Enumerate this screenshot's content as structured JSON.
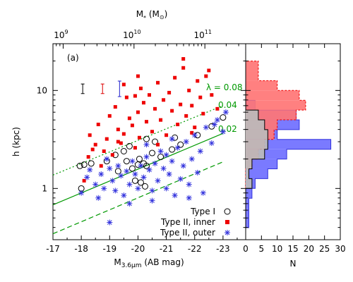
{
  "chart_data": [
    {
      "panel": "scatter",
      "type": "scatter",
      "panel_label": "(a)",
      "xlabel_bottom": "M",
      "xlabel_bottom_sub": "3.6µm",
      "xlabel_bottom_unit": " (AB mag)",
      "xlabel_top": "M",
      "xlabel_top_sub": "*",
      "xlabel_top_unit": " (M",
      "xlabel_top_sun": "⊙",
      "xlabel_top_close": ")",
      "ylabel": "h (kpc)",
      "x_reversed": true,
      "xlim": [
        -17,
        -23.8
      ],
      "ylim": [
        0.3,
        30
      ],
      "y_scale": "log",
      "x_ticks": [
        -17,
        -18,
        -19,
        -20,
        -21,
        -22,
        -23
      ],
      "x_tick_labels": [
        "-17",
        "-18",
        "-19",
        "-20",
        "-21",
        "-22",
        "-23"
      ],
      "y_ticks": [
        1,
        10
      ],
      "y_tick_labels": [
        "1",
        "10"
      ],
      "top_ticks": [
        {
          "mstar_exp": 9,
          "mag": -17.36
        },
        {
          "mstar_exp": 10,
          "mag": -19.86
        },
        {
          "mstar_exp": 11,
          "mag": -22.36
        }
      ],
      "top_tick_base": "10",
      "top_tick_labels": [
        "9",
        "10",
        "11"
      ],
      "lambda_label": "λ = 0.08",
      "lines": [
        {
          "lambda": "0.08",
          "label": "0.08",
          "style": "dotted",
          "x": [
            -17,
            -23
          ],
          "y": [
            1.37,
            7.0
          ],
          "color": "#009900"
        },
        {
          "lambda": "0.04",
          "label": "0.04",
          "style": "solid",
          "x": [
            -17,
            -23
          ],
          "y": [
            0.68,
            3.65
          ],
          "color": "#009900"
        },
        {
          "lambda": "0.02",
          "label": "0.02",
          "style": "dashed",
          "x": [
            -17,
            -23
          ],
          "y": [
            0.345,
            1.87
          ],
          "color": "#009900"
        }
      ],
      "error_bars": [
        {
          "series": "Type I",
          "x": -18.05,
          "y": 10.4,
          "dy_factor": 1.12,
          "color": "#000000"
        },
        {
          "series": "Type II, inner",
          "x": -18.75,
          "y": 10.4,
          "dy_factor": 1.12,
          "color": "#dd0000"
        },
        {
          "series": "Type II, outer",
          "x": -19.35,
          "y": 10.4,
          "dy_factor": 1.2,
          "color": "#2222cc"
        }
      ],
      "legend_position": "bottom-right",
      "series": [
        {
          "name": "Type I",
          "marker": "circle",
          "color": "#000000",
          "points": [
            [
              -18.0,
              1.0
            ],
            [
              -17.95,
              1.7
            ],
            [
              -18.1,
              1.75
            ],
            [
              -18.35,
              1.8
            ],
            [
              -18.9,
              1.9
            ],
            [
              -19.2,
              2.2
            ],
            [
              -19.5,
              2.4
            ],
            [
              -19.6,
              1.9
            ],
            [
              -19.8,
              1.6
            ],
            [
              -19.9,
              1.2
            ],
            [
              -20.0,
              1.75
            ],
            [
              -20.05,
              2.0
            ],
            [
              -20.2,
              1.8
            ],
            [
              -20.3,
              1.7
            ],
            [
              -20.5,
              2.3
            ],
            [
              -20.6,
              3.0
            ],
            [
              -20.8,
              2.1
            ],
            [
              -20.1,
              1.15
            ],
            [
              -20.3,
              3.2
            ],
            [
              -21.2,
              2.5
            ],
            [
              -21.3,
              3.3
            ],
            [
              -21.5,
              2.8
            ],
            [
              -22.1,
              3.5
            ],
            [
              -22.6,
              4.3
            ],
            [
              -23.0,
              5.3
            ],
            [
              -19.3,
              1.5
            ],
            [
              -20.25,
              1.05
            ],
            [
              -19.7,
              2.7
            ]
          ]
        },
        {
          "name": "Type II, inner",
          "marker": "square",
          "color": "#ee0000",
          "points": [
            [
              -18.1,
              1.2
            ],
            [
              -18.25,
              2.1
            ],
            [
              -18.3,
              3.5
            ],
            [
              -18.5,
              2.8
            ],
            [
              -18.6,
              4.5
            ],
            [
              -18.7,
              1.7
            ],
            [
              -18.8,
              2.4
            ],
            [
              -18.9,
              3.2
            ],
            [
              -19.0,
              5.5
            ],
            [
              -19.1,
              2.2
            ],
            [
              -19.2,
              6.8
            ],
            [
              -19.3,
              4.0
            ],
            [
              -19.4,
              2.9
            ],
            [
              -19.5,
              3.6
            ],
            [
              -19.6,
              8.5
            ],
            [
              -19.7,
              5.2
            ],
            [
              -19.8,
              4.4
            ],
            [
              -19.9,
              2.6
            ],
            [
              -20.0,
              6.0
            ],
            [
              -20.05,
              3.3
            ],
            [
              -20.1,
              10.5
            ],
            [
              -20.2,
              7.5
            ],
            [
              -20.3,
              4.8
            ],
            [
              -20.4,
              9.0
            ],
            [
              -20.5,
              3.8
            ],
            [
              -20.6,
              6.5
            ],
            [
              -20.7,
              12.0
            ],
            [
              -20.8,
              5.0
            ],
            [
              -20.9,
              8.0
            ],
            [
              -21.0,
              3.5
            ],
            [
              -21.1,
              9.5
            ],
            [
              -21.2,
              6.2
            ],
            [
              -21.3,
              13.5
            ],
            [
              -21.4,
              4.5
            ],
            [
              -21.5,
              7.2
            ],
            [
              -21.6,
              17.0
            ],
            [
              -21.7,
              5.5
            ],
            [
              -21.8,
              10.0
            ],
            [
              -21.9,
              7.0
            ],
            [
              -22.0,
              4.2
            ],
            [
              -22.1,
              12.5
            ],
            [
              -22.2,
              8.5
            ],
            [
              -22.3,
              5.8
            ],
            [
              -22.5,
              16.0
            ],
            [
              -22.6,
              9.0
            ],
            [
              -22.8,
              6.5
            ],
            [
              -20.0,
              14.0
            ],
            [
              -19.5,
              11.5
            ],
            [
              -21.6,
              21.0
            ],
            [
              -22.4,
              14.0
            ],
            [
              -18.4,
              2.5
            ],
            [
              -19.3,
              3.0
            ],
            [
              -20.7,
              2.8
            ],
            [
              -21.9,
              3.7
            ],
            [
              -19.9,
              8.8
            ]
          ]
        },
        {
          "name": "Type II, outer",
          "marker": "star",
          "color": "#3333dd",
          "points": [
            [
              -18.0,
              0.9
            ],
            [
              -18.2,
              1.3
            ],
            [
              -18.3,
              1.55
            ],
            [
              -18.5,
              1.1
            ],
            [
              -18.6,
              0.8
            ],
            [
              -18.7,
              1.4
            ],
            [
              -18.8,
              1.0
            ],
            [
              -19.0,
              0.45
            ],
            [
              -19.0,
              1.6
            ],
            [
              -19.1,
              1.2
            ],
            [
              -19.2,
              0.95
            ],
            [
              -19.3,
              1.7
            ],
            [
              -19.4,
              1.35
            ],
            [
              -19.5,
              0.85
            ],
            [
              -19.6,
              1.5
            ],
            [
              -19.7,
              1.1
            ],
            [
              -19.8,
              1.9
            ],
            [
              -19.9,
              1.4
            ],
            [
              -20.0,
              1.0
            ],
            [
              -20.1,
              1.7
            ],
            [
              -20.2,
              1.3
            ],
            [
              -20.3,
              2.1
            ],
            [
              -20.4,
              1.55
            ],
            [
              -20.5,
              0.95
            ],
            [
              -20.6,
              1.8
            ],
            [
              -20.7,
              1.2
            ],
            [
              -20.8,
              2.4
            ],
            [
              -20.9,
              1.6
            ],
            [
              -21.0,
              1.0
            ],
            [
              -21.0,
              2.2
            ],
            [
              -21.1,
              1.4
            ],
            [
              -21.2,
              1.9
            ],
            [
              -21.3,
              0.85
            ],
            [
              -21.4,
              2.6
            ],
            [
              -21.5,
              1.25
            ],
            [
              -21.6,
              1.7
            ],
            [
              -21.7,
              3.0
            ],
            [
              -21.8,
              1.1
            ],
            [
              -21.9,
              2.0
            ],
            [
              -22.0,
              3.5
            ],
            [
              -22.1,
              1.45
            ],
            [
              -22.2,
              2.4
            ],
            [
              -22.3,
              0.9
            ],
            [
              -22.4,
              4.2
            ],
            [
              -22.6,
              2.9
            ],
            [
              -22.8,
              5.0
            ],
            [
              -23.0,
              3.8
            ],
            [
              -23.1,
              6.0
            ],
            [
              -20.5,
              0.75
            ],
            [
              -19.7,
              0.7
            ],
            [
              -21.8,
              0.8
            ],
            [
              -18.9,
              2.0
            ],
            [
              -20.3,
              2.8
            ],
            [
              -21.2,
              3.2
            ],
            [
              -22.7,
              4.5
            ]
          ]
        }
      ]
    },
    {
      "panel": "histogram",
      "type": "histogram",
      "orientation": "horizontal",
      "xlabel": "N",
      "xlim": [
        0,
        30
      ],
      "x_ticks": [
        0,
        5,
        10,
        15,
        20,
        25,
        30
      ],
      "x_tick_labels": [
        "0",
        "5",
        "10",
        "15",
        "20",
        "25",
        "30"
      ],
      "y_scale": "log",
      "ylim": [
        0.3,
        30
      ],
      "bin_edges_log10": [
        -0.5,
        -0.4,
        -0.3,
        -0.2,
        -0.1,
        0.0,
        0.1,
        0.2,
        0.3,
        0.4,
        0.5,
        0.6,
        0.7,
        0.8,
        0.9,
        1.0,
        1.1,
        1.2,
        1.3,
        1.4
      ],
      "series": [
        {
          "name": "Type II, outer",
          "color": "#3333dd",
          "fill": "#7a7aff",
          "counts": [
            0,
            1,
            1,
            1,
            2,
            3,
            7,
            10,
            13,
            27,
            10,
            17,
            16,
            3,
            0,
            0,
            0,
            0,
            0
          ]
        },
        {
          "name": "Type II, inner",
          "color": "#ee0000",
          "fill": "#ff7575",
          "counts": [
            0,
            0,
            0,
            0,
            0,
            0,
            0,
            2,
            4,
            6,
            9,
            10,
            16,
            19,
            17,
            10,
            4,
            4,
            0
          ]
        },
        {
          "name": "Type I",
          "color": "#000000",
          "fill": "#bbbbbb",
          "counts": [
            0,
            0,
            0,
            0,
            0,
            2,
            1,
            2,
            6,
            7,
            7,
            6,
            4,
            0,
            0,
            0,
            0,
            0,
            0
          ]
        }
      ]
    }
  ]
}
